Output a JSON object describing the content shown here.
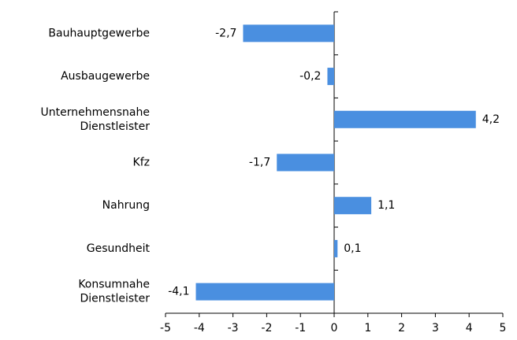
{
  "chart_data": {
    "type": "bar",
    "orientation": "horizontal",
    "categories": [
      "Bauhauptgewerbe",
      "Ausbaugewerbe",
      "Unternehmensnahe\nDienstleister",
      "Kfz",
      "Nahrung",
      "Gesundheit",
      "Konsumnahe\nDienstleister"
    ],
    "values": [
      -2.7,
      -0.2,
      4.2,
      -1.7,
      1.1,
      0.1,
      -4.1
    ],
    "value_labels": [
      "-2,7",
      "-0,2",
      "4,2",
      "-1,7",
      "1,1",
      "0,1",
      "-4,1"
    ],
    "color": "#4a8fe0",
    "xlim": [
      -5,
      5
    ],
    "xticks": [
      -5,
      -4,
      -3,
      -2,
      -1,
      0,
      1,
      2,
      3,
      4,
      5
    ]
  }
}
